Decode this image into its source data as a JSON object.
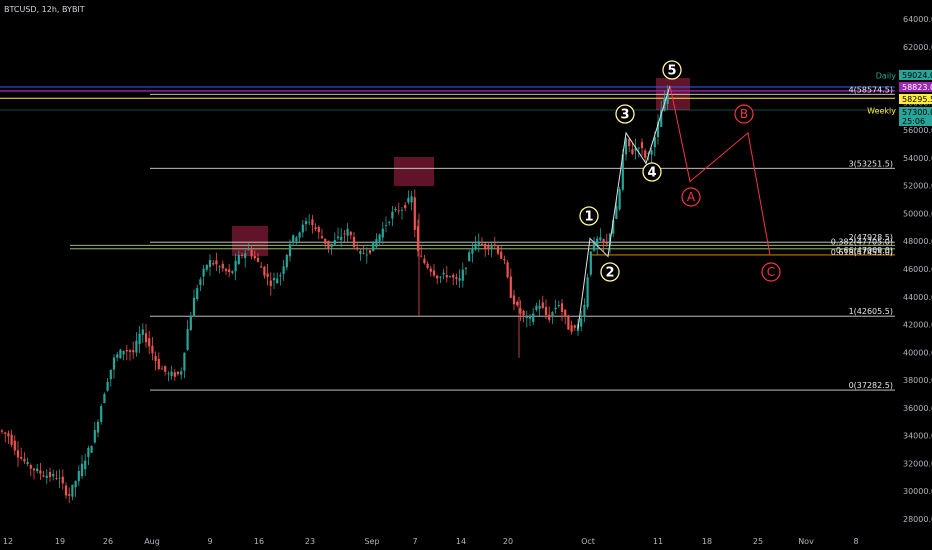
{
  "header": {
    "symbol_title": "BTCUSD, 12h, BYBIT"
  },
  "colors": {
    "background": "#000000",
    "up": "#26a69a",
    "down": "#ef5350",
    "level_line": "#d9d9d9",
    "fib_orange": "#ff9800",
    "weekly": "#ffeb3b",
    "daily": "#9c27b0",
    "blue_line": "#2962ff",
    "wave_yellow": "#fff59d",
    "wave_red": "#f23645",
    "zone": "#8a1c3a"
  },
  "price_axis": {
    "ticks": [
      "64000.0",
      "62000.0",
      "60000.0",
      "58000.0",
      "56000.0",
      "54000.0",
      "52000.0",
      "50000.0",
      "48000.0",
      "46000.0",
      "44000.0",
      "42000.0",
      "40000.0",
      "38000.0",
      "36000.0",
      "34000.0",
      "32000.0",
      "30000.0",
      "28000.0"
    ],
    "badges": [
      {
        "text": "59024.0",
        "bg": "#26a69a",
        "fg": "#000000",
        "price": 59024
      },
      {
        "text": "58823.0",
        "bg": "#9c27b0",
        "fg": "#ffffff",
        "price": 58823
      },
      {
        "text": "58295.5",
        "bg": "#ffeb3b",
        "fg": "#000000",
        "price": 58295.5
      },
      {
        "text": "57300.0",
        "bg": "#26a69a",
        "fg": "#000000",
        "price": 57300
      },
      {
        "text": "25:06",
        "bg": "#26a69a",
        "fg": "#000000",
        "price": 56700
      }
    ],
    "side_labels": [
      {
        "text": "Daily",
        "color": "#26a69a",
        "price": 59950
      },
      {
        "text": "Weekly",
        "color": "#ffeb3b",
        "price": 57400
      }
    ]
  },
  "time_axis": {
    "labels": [
      "12",
      "19",
      "26",
      "Aug",
      "9",
      "16",
      "23",
      "Sep",
      "7",
      "14",
      "20",
      "Oct",
      "11",
      "18",
      "25",
      "Nov",
      "8"
    ]
  },
  "fib_levels": [
    {
      "label": "4(58574.5)",
      "price": 58574.5
    },
    {
      "label": "3(53251.5)",
      "price": 53251.5
    },
    {
      "label": "2(47928.5)",
      "price": 47928.5
    },
    {
      "label": "0.382(47705.0)",
      "price": 47705
    },
    {
      "label": "0.618(47455.0)",
      "price": 47455
    },
    {
      "label": "0.66(47009.0)",
      "price": 47009
    },
    {
      "label": "1(42605.5)",
      "price": 42605.5
    },
    {
      "label": "0(37282.5)",
      "price": 37282.5
    }
  ],
  "waves_yellow": [
    "1",
    "2",
    "3",
    "4",
    "5"
  ],
  "waves_red": [
    "A",
    "B",
    "C"
  ]
}
